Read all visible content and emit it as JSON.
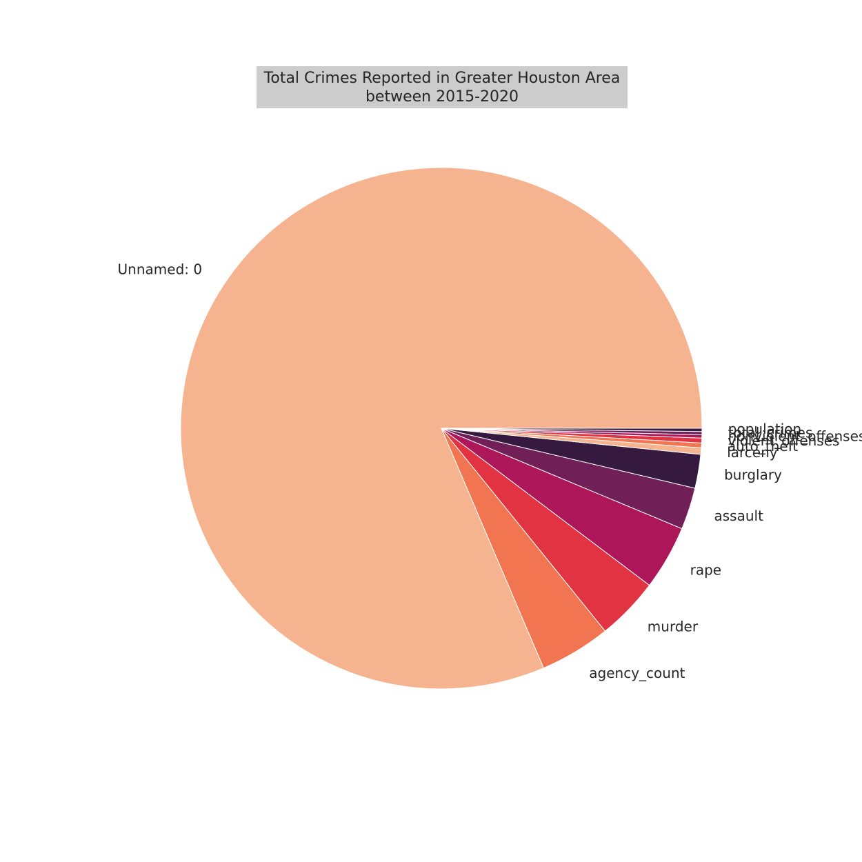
{
  "chart_data": {
    "type": "pie",
    "title_lines": [
      "Total Crimes Reported in Greater Houston Area",
      "between 2015-2020"
    ],
    "start_angle_deg": 0,
    "direction": "counterclockwise",
    "categories": [
      "Unnamed: 0",
      "agency_count",
      "murder",
      "rape",
      "assault",
      "burglary",
      "larceny",
      "auto_theft",
      "violent_offenses",
      "nonviolent_offenses",
      "total_crimes",
      "population"
    ],
    "values": [
      81.5,
      4.4,
      3.9,
      4.0,
      2.6,
      2.1,
      0.4,
      0.3,
      0.3,
      0.2,
      0.2,
      0.2
    ],
    "colors": [
      "#f5b48f",
      "#f27551",
      "#e13342",
      "#ad1759",
      "#701f57",
      "#35193e",
      "#f5b48f",
      "#f27551",
      "#e13342",
      "#ad1759",
      "#701f57",
      "#35193e"
    ]
  }
}
